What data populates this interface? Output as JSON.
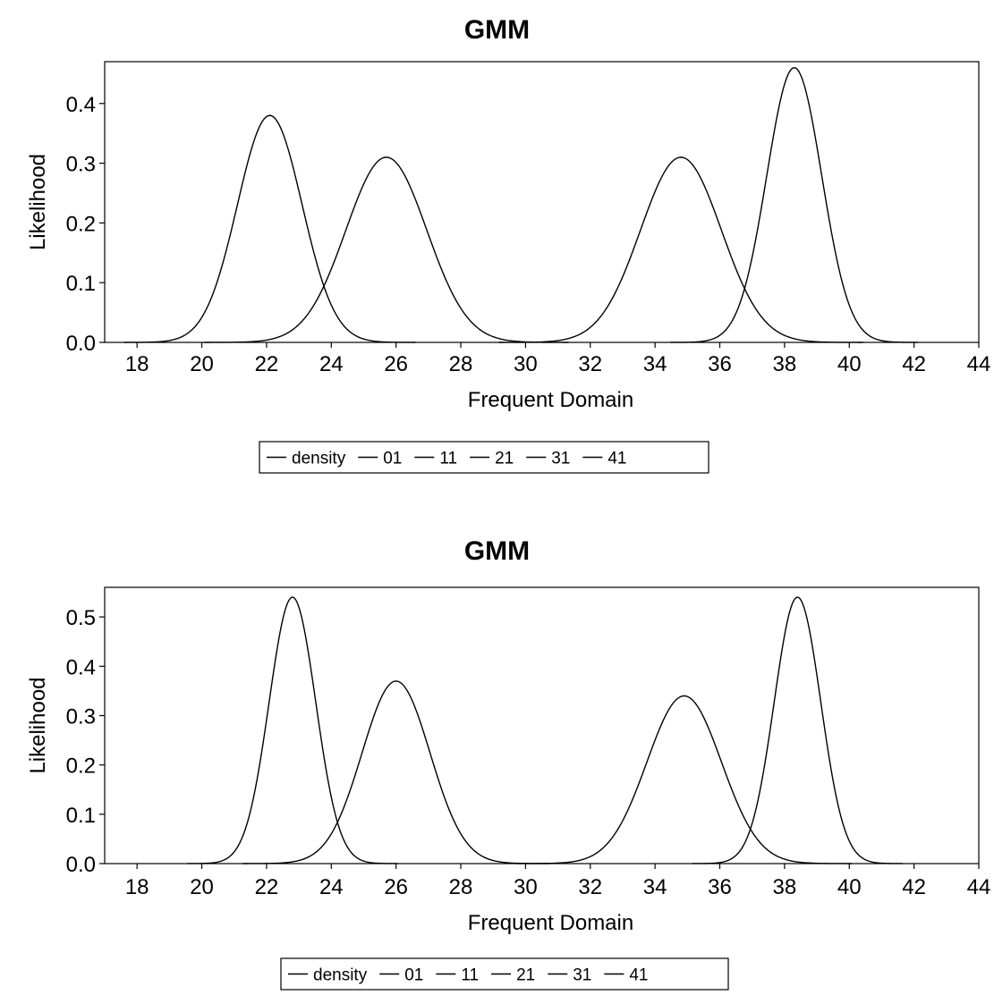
{
  "chart_data": [
    {
      "type": "line",
      "title": "GMM",
      "xlabel": "Frequent Domain",
      "ylabel": "Likelihood",
      "xlim": [
        17,
        44
      ],
      "ylim": [
        0,
        0.47
      ],
      "xticks": [
        "18",
        "20",
        "22",
        "24",
        "26",
        "28",
        "30",
        "32",
        "34",
        "36",
        "38",
        "40",
        "42",
        "44"
      ],
      "yticks": [
        "0.0",
        "0.1",
        "0.2",
        "0.3",
        "0.4"
      ],
      "legend": {
        "placement": "bottom",
        "entries": [
          "density",
          "01",
          "11",
          "21",
          "31",
          "41"
        ]
      },
      "grid": false,
      "series": [
        {
          "peak_x": 22.1,
          "peak_y": 0.38,
          "sd": 1.0
        },
        {
          "peak_x": 25.7,
          "peak_y": 0.31,
          "sd": 1.25
        },
        {
          "peak_x": 34.8,
          "peak_y": 0.31,
          "sd": 1.25
        },
        {
          "peak_x": 38.3,
          "peak_y": 0.46,
          "sd": 0.85
        }
      ]
    },
    {
      "type": "line",
      "title": "GMM",
      "xlabel": "Frequent Domain",
      "ylabel": "Likelihood",
      "xlim": [
        17,
        44
      ],
      "ylim": [
        0,
        0.56
      ],
      "xticks": [
        "18",
        "20",
        "22",
        "24",
        "26",
        "28",
        "30",
        "32",
        "34",
        "36",
        "38",
        "40",
        "42",
        "44"
      ],
      "yticks": [
        "0.0",
        "0.1",
        "0.2",
        "0.3",
        "0.4",
        "0.5"
      ],
      "legend": {
        "placement": "bottom",
        "entries": [
          "density",
          "01",
          "11",
          "21",
          "31",
          "41"
        ]
      },
      "grid": false,
      "series": [
        {
          "peak_x": 22.8,
          "peak_y": 0.54,
          "sd": 0.72
        },
        {
          "peak_x": 26.0,
          "peak_y": 0.37,
          "sd": 1.05
        },
        {
          "peak_x": 34.9,
          "peak_y": 0.34,
          "sd": 1.15
        },
        {
          "peak_x": 38.4,
          "peak_y": 0.54,
          "sd": 0.72
        }
      ]
    }
  ]
}
